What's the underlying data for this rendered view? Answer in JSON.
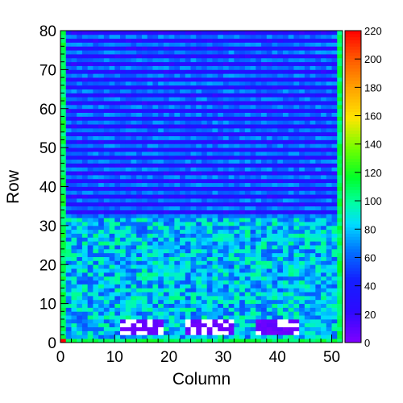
{
  "chart_data": {
    "type": "heatmap",
    "title": "",
    "xlabel": "Column",
    "ylabel": "Row",
    "xlim": [
      0,
      52
    ],
    "ylim": [
      0,
      80
    ],
    "zlim": [
      0,
      220
    ],
    "x_ticks": [
      "0",
      "10",
      "20",
      "30",
      "40",
      "50"
    ],
    "y_ticks": [
      "0",
      "10",
      "20",
      "30",
      "40",
      "50",
      "60",
      "70",
      "80"
    ],
    "z_ticks": [
      "0",
      "20",
      "40",
      "60",
      "80",
      "100",
      "120",
      "140",
      "160",
      "180",
      "200",
      "220"
    ],
    "colormap": "rainbow (violet-blue-cyan-green-yellow-orange-red)",
    "empty_bins_color": "#ffffff",
    "regions": [
      {
        "name": "upper rows",
        "rows": [
          32,
          80
        ],
        "columns": [
          0,
          52
        ],
        "z_typical": 30,
        "pattern": "alternating horizontal bands z≈20–70 every 2 rows"
      },
      {
        "name": "lower rows",
        "rows": [
          6,
          32
        ],
        "columns": [
          0,
          52
        ],
        "z_typical": 75,
        "z_range": [
          40,
          110
        ]
      },
      {
        "name": "row 0-1 edge",
        "rows": [
          0,
          1
        ],
        "columns": [
          0,
          52
        ],
        "z_typical": 110
      },
      {
        "name": "left and right edge columns",
        "rows": [
          0,
          80
        ],
        "columns": [
          [
            0,
            1
          ],
          [
            51,
            52
          ]
        ],
        "z_typical": 110
      },
      {
        "name": "corner bin",
        "rows": [
          0,
          1
        ],
        "columns": [
          0,
          1
        ],
        "z": 220
      },
      {
        "name": "low cluster 1",
        "rows": [
          2,
          6
        ],
        "columns": [
          11,
          19
        ],
        "z_typical": 5,
        "has_empty_bins": true
      },
      {
        "name": "low cluster 2",
        "rows": [
          2,
          6
        ],
        "columns": [
          23,
          32
        ],
        "z_typical": 5,
        "has_empty_bins": true
      },
      {
        "name": "low cluster 3",
        "rows": [
          2,
          6
        ],
        "columns": [
          36,
          44
        ],
        "z_typical": 5,
        "has_empty_bins": true
      }
    ]
  }
}
